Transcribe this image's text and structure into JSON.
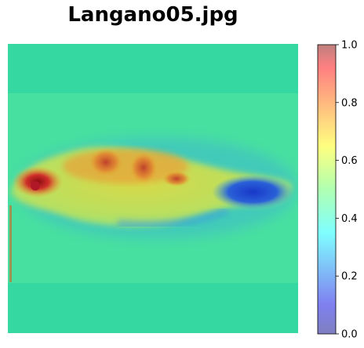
{
  "chart_data": {
    "type": "heatmap",
    "title": "Langano05.jpg",
    "xlabel": "",
    "ylabel": "",
    "axes": "off",
    "colormap": "jet",
    "overlay_alpha": 0.5,
    "colorbar": {
      "placement": "right",
      "range": [
        0.0,
        1.0
      ],
      "ticks": [
        "0.0",
        "0.2",
        "0.4",
        "0.6",
        "0.8",
        "1.0"
      ]
    },
    "background_value": 0.42,
    "regions": [
      {
        "description": "fish body",
        "value": 0.6
      },
      {
        "description": "head / eye",
        "value": 0.9
      },
      {
        "description": "upper body dorsal spots",
        "value": 0.78
      },
      {
        "description": "tail",
        "value": 0.15
      }
    ]
  }
}
